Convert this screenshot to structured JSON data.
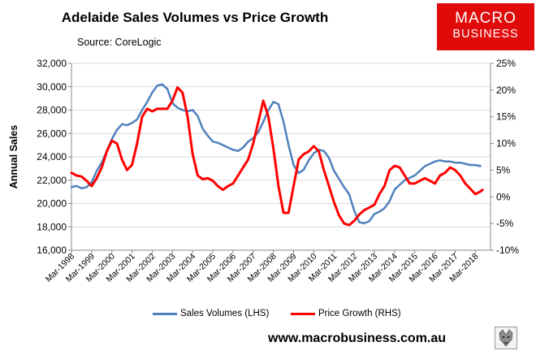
{
  "header": {
    "title": "Adelaide Sales Volumes vs Price Growth",
    "source": "Source: CoreLogic"
  },
  "logo": {
    "line1": "MACRO",
    "line2": "BUSINESS"
  },
  "footer": {
    "url": "www.macrobusiness.com.au"
  },
  "colors": {
    "sales": "#4f81bd",
    "price": "#ff0000",
    "grid": "#d9d9d9",
    "logo_bg": "#e10a0a"
  },
  "chart_data": {
    "type": "line",
    "title": "Adelaide Sales Volumes vs Price Growth",
    "ylabel": "Annual Sales",
    "ylim": [
      16000,
      32000
    ],
    "y_ticks": [
      16000,
      18000,
      20000,
      22000,
      24000,
      26000,
      28000,
      30000,
      32000
    ],
    "y_tick_labels": [
      "16,000",
      "18,000",
      "20,000",
      "22,000",
      "24,000",
      "26,000",
      "28,000",
      "30,000",
      "32,000"
    ],
    "y2lim": [
      -10,
      25
    ],
    "y2_ticks": [
      -10,
      -5,
      0,
      5,
      10,
      15,
      20,
      25
    ],
    "y2_tick_labels": [
      "-10%",
      "-5%",
      "0%",
      "5%",
      "10%",
      "15%",
      "20%",
      "25%"
    ],
    "xlim": [
      1998.0,
      2018.75
    ],
    "x_tick_labels": [
      "Mar-1998",
      "Mar-1999",
      "Mar-2000",
      "Mar-2001",
      "Mar-2002",
      "Mar-2003",
      "Mar-2004",
      "Mar-2005",
      "Mar-2006",
      "Mar-2007",
      "Mar-2008",
      "Mar-2009",
      "Mar-2010",
      "Mar-2011",
      "Mar-2012",
      "Mar-2013",
      "Mar-2014",
      "Mar-2015",
      "Mar-2016",
      "Mar-2017",
      "Mar-2018"
    ],
    "legend": [
      "Sales Volumes (LHS)",
      "Price Growth (RHS)"
    ],
    "legend_position": "bottom",
    "series": [
      {
        "name": "Sales Volumes (LHS)",
        "axis": "left",
        "x": [
          1998.0,
          1998.25,
          1998.5,
          1998.75,
          1999.0,
          1999.25,
          1999.5,
          1999.75,
          2000.0,
          2000.25,
          2000.5,
          2000.75,
          2001.0,
          2001.25,
          2001.5,
          2001.75,
          2002.0,
          2002.25,
          2002.5,
          2002.75,
          2003.0,
          2003.25,
          2003.5,
          2003.75,
          2004.0,
          2004.25,
          2004.5,
          2004.75,
          2005.0,
          2005.25,
          2005.5,
          2005.75,
          2006.0,
          2006.25,
          2006.5,
          2006.75,
          2007.0,
          2007.25,
          2007.5,
          2007.75,
          2008.0,
          2008.25,
          2008.5,
          2008.75,
          2009.0,
          2009.25,
          2009.5,
          2009.75,
          2010.0,
          2010.25,
          2010.5,
          2010.75,
          2011.0,
          2011.25,
          2011.5,
          2011.75,
          2012.0,
          2012.25,
          2012.5,
          2012.75,
          2013.0,
          2013.25,
          2013.5,
          2013.75,
          2014.0,
          2014.25,
          2014.5,
          2014.75,
          2015.0,
          2015.25,
          2015.5,
          2015.75,
          2016.0,
          2016.25,
          2016.5,
          2016.75,
          2017.0,
          2017.25,
          2017.5,
          2017.75,
          2018.0,
          2018.25
        ],
        "values": [
          21400,
          21500,
          21300,
          21400,
          21800,
          22800,
          23500,
          24500,
          25500,
          26300,
          26800,
          26700,
          26900,
          27200,
          28000,
          28700,
          29500,
          30100,
          30200,
          29800,
          28600,
          28200,
          28000,
          27900,
          28000,
          27500,
          26400,
          25800,
          25300,
          25200,
          25000,
          24800,
          24600,
          24500,
          24800,
          25300,
          25600,
          26100,
          27000,
          28000,
          28700,
          28500,
          27000,
          25000,
          23300,
          22600,
          22900,
          23700,
          24300,
          24600,
          24500,
          23900,
          22800,
          22100,
          21400,
          20800,
          19400,
          18400,
          18300,
          18500,
          19100,
          19300,
          19600,
          20200,
          21200,
          21600,
          22000,
          22200,
          22400,
          22800,
          23200,
          23400,
          23600,
          23700,
          23600,
          23600,
          23500,
          23500,
          23400,
          23300,
          23300,
          23200
        ]
      },
      {
        "name": "Price Growth (RHS)",
        "axis": "right",
        "x": [
          1998.0,
          1998.25,
          1998.5,
          1998.75,
          1999.0,
          1999.25,
          1999.5,
          1999.75,
          2000.0,
          2000.25,
          2000.5,
          2000.75,
          2001.0,
          2001.25,
          2001.5,
          2001.75,
          2002.0,
          2002.25,
          2002.5,
          2002.75,
          2003.0,
          2003.25,
          2003.5,
          2003.75,
          2004.0,
          2004.25,
          2004.5,
          2004.75,
          2005.0,
          2005.25,
          2005.5,
          2005.75,
          2006.0,
          2006.25,
          2006.5,
          2006.75,
          2007.0,
          2007.25,
          2007.5,
          2007.75,
          2008.0,
          2008.25,
          2008.5,
          2008.75,
          2009.0,
          2009.25,
          2009.5,
          2009.75,
          2010.0,
          2010.25,
          2010.5,
          2010.75,
          2011.0,
          2011.25,
          2011.5,
          2011.75,
          2012.0,
          2012.25,
          2012.5,
          2012.75,
          2013.0,
          2013.25,
          2013.5,
          2013.75,
          2014.0,
          2014.25,
          2014.5,
          2014.75,
          2015.0,
          2015.25,
          2015.5,
          2015.75,
          2016.0,
          2016.25,
          2016.5,
          2016.75,
          2017.0,
          2017.25,
          2017.5,
          2017.75,
          2018.0,
          2018.25,
          2018.35
        ],
        "values": [
          4.5,
          4.0,
          3.8,
          3.0,
          2.0,
          3.5,
          5.5,
          8.5,
          10.5,
          10.0,
          7.0,
          5.0,
          6.0,
          10.0,
          15.0,
          16.5,
          16.0,
          16.5,
          16.5,
          16.5,
          18.0,
          20.5,
          19.5,
          15.0,
          8.0,
          4.0,
          3.3,
          3.5,
          3.0,
          2.0,
          1.3,
          2.0,
          2.5,
          4.0,
          5.5,
          7.0,
          10.0,
          14.0,
          18.0,
          15.0,
          9.0,
          2.0,
          -3.0,
          -3.0,
          2.0,
          7.0,
          8.0,
          8.5,
          9.5,
          8.5,
          5.0,
          2.0,
          -1.0,
          -3.5,
          -5.0,
          -5.3,
          -4.5,
          -3.3,
          -2.5,
          -2.0,
          -1.5,
          0.5,
          2.0,
          5.0,
          5.8,
          5.5,
          4.0,
          2.5,
          2.5,
          3.0,
          3.5,
          3.0,
          2.5,
          4.0,
          4.5,
          5.5,
          5.0,
          4.0,
          2.5,
          1.5,
          0.5,
          1.0,
          1.3
        ]
      }
    ]
  }
}
